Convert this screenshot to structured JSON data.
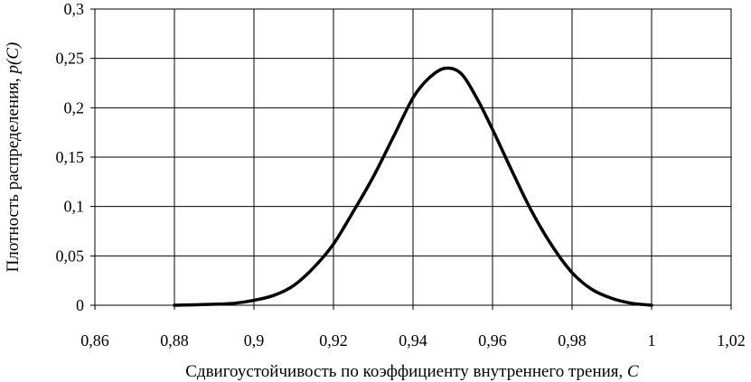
{
  "chart_data": {
    "type": "line",
    "title": "",
    "xlabel": "Сдвигоустойчивость по коэффициенту внутреннего трения,",
    "xlabel_var": "C",
    "ylabel": "Плотность распределения,",
    "ylabel_var": "p(C)",
    "xlim": [
      0.86,
      1.02
    ],
    "ylim": [
      0,
      0.3
    ],
    "x_ticks": [
      "0,86",
      "0,88",
      "0,9",
      "0,92",
      "0,94",
      "0,96",
      "0,98",
      "1",
      "1,02"
    ],
    "x_tick_values": [
      0.86,
      0.88,
      0.9,
      0.92,
      0.94,
      0.96,
      0.98,
      1.0,
      1.02
    ],
    "y_ticks": [
      "0",
      "0,05",
      "0,1",
      "0,15",
      "0,2",
      "0,25",
      "0,3"
    ],
    "y_tick_values": [
      0,
      0.05,
      0.1,
      0.15,
      0.2,
      0.25,
      0.3
    ],
    "grid": true,
    "legend": "none",
    "line_color": "#000000",
    "series": [
      {
        "x": [
          0.88,
          0.89,
          0.895,
          0.9,
          0.905,
          0.91,
          0.915,
          0.92,
          0.925,
          0.93,
          0.935,
          0.94,
          0.944,
          0.948,
          0.952,
          0.956,
          0.96,
          0.965,
          0.97,
          0.975,
          0.98,
          0.985,
          0.99,
          0.995,
          1.0
        ],
        "y": [
          0.0,
          0.001,
          0.002,
          0.005,
          0.01,
          0.02,
          0.038,
          0.062,
          0.095,
          0.13,
          0.17,
          0.21,
          0.23,
          0.24,
          0.235,
          0.21,
          0.178,
          0.135,
          0.094,
          0.06,
          0.033,
          0.016,
          0.007,
          0.002,
          0.0
        ]
      }
    ]
  }
}
